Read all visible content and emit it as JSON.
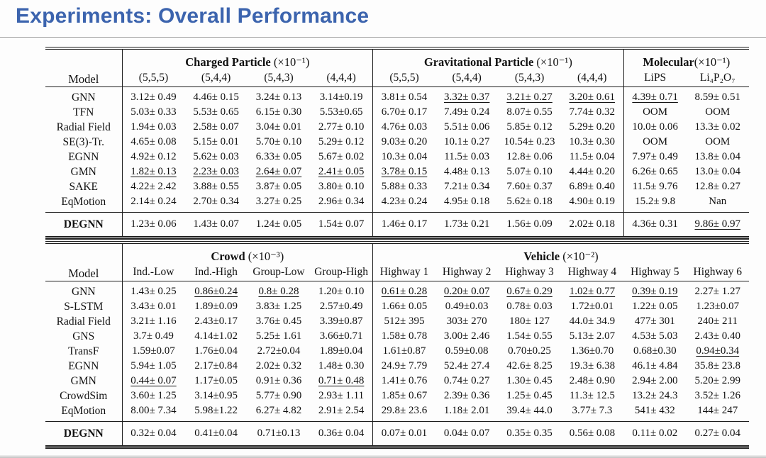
{
  "title": "Experiments: Overall Performance",
  "tables": [
    {
      "name": "particle-molecular-results",
      "model_header": "Model",
      "groups": [
        {
          "title": "Charged Particle (×10⁻¹)",
          "cols": [
            "(5,5,5)",
            "(5,4,4)",
            "(5,4,3)",
            "(4,4,4)"
          ]
        },
        {
          "title": "Gravitational Particle (×10⁻¹)",
          "cols": [
            "(5,5,5)",
            "(5,4,4)",
            "(5,4,3)",
            "(4,4,4)"
          ]
        },
        {
          "title": "Molecular(×10⁻¹)",
          "cols": [
            "LiPS",
            "Li₄P₂O₇"
          ]
        }
      ],
      "rows": [
        {
          "model": "GNN",
          "values": [
            "3.12± 0.49",
            "4.46± 0.15",
            "3.24± 0.13",
            "3.14±0.19",
            "3.81± 0.54",
            "3.32± 0.37",
            "3.21± 0.27",
            "3.20± 0.61",
            "4.39± 0.71",
            "8.59± 0.51"
          ],
          "underline_cols": [
            5,
            6,
            7,
            8
          ],
          "bold_cols": [
            9
          ]
        },
        {
          "model": "TFN",
          "values": [
            "5.03± 0.33",
            "5.53± 0.65",
            "6.15± 0.30",
            "5.53±0.65",
            "6.70± 0.17",
            "7.49± 0.24",
            "8.07± 0.55",
            "7.74± 0.32",
            "OOM",
            "OOM"
          ],
          "underline_cols": [],
          "bold_cols": []
        },
        {
          "model": "Radial Field",
          "values": [
            "1.94± 0.03",
            "2.58± 0.07",
            "3.04± 0.01",
            "2.77± 0.10",
            "4.76± 0.03",
            "5.51± 0.06",
            "5.85± 0.12",
            "5.29± 0.20",
            "10.0± 0.06",
            "13.3± 0.02"
          ],
          "underline_cols": [],
          "bold_cols": []
        },
        {
          "model": "SE(3)-Tr.",
          "values": [
            "4.65± 0.08",
            "5.15± 0.01",
            "5.70± 0.10",
            "5.29± 0.12",
            "9.03± 0.20",
            "10.1± 0.27",
            "10.54± 0.23",
            "10.3± 0.30",
            "OOM",
            "OOM"
          ],
          "underline_cols": [],
          "bold_cols": []
        },
        {
          "model": "EGNN",
          "values": [
            "4.92± 0.12",
            "5.62± 0.03",
            "6.33± 0.05",
            "5.67± 0.02",
            "10.3± 0.04",
            "11.5± 0.03",
            "12.8± 0.06",
            "11.5± 0.04",
            "7.97± 0.49",
            "13.8± 0.04"
          ],
          "underline_cols": [],
          "bold_cols": []
        },
        {
          "model": "GMN",
          "values": [
            "1.82± 0.13",
            "2.23± 0.03",
            "2.64± 0.07",
            "2.41± 0.05",
            "3.78± 0.15",
            "4.48± 0.13",
            "5.07± 0.10",
            "4.44± 0.20",
            "6.26± 0.65",
            "13.0± 0.04"
          ],
          "underline_cols": [
            0,
            1,
            2,
            3,
            4
          ],
          "bold_cols": []
        },
        {
          "model": "SAKE",
          "values": [
            "4.22± 2.42",
            "3.88± 0.55",
            "3.87± 0.05",
            "3.80± 0.10",
            "5.88± 0.33",
            "7.21± 0.34",
            "7.60± 0.37",
            "6.89± 0.40",
            "11.5± 9.76",
            "12.8± 0.27"
          ],
          "underline_cols": [],
          "bold_cols": []
        },
        {
          "model": "EqMotion",
          "values": [
            "2.14± 0.24",
            "2.70± 0.34",
            "3.27± 0.25",
            "2.96± 0.34",
            "4.23± 0.24",
            "4.95± 0.18",
            "5.62± 0.18",
            "4.90± 0.19",
            "15.2± 9.8",
            "Nan"
          ],
          "underline_cols": [],
          "bold_cols": []
        }
      ],
      "footer_row": {
        "model": "DEGNN",
        "values": [
          "1.23± 0.06",
          "1.43± 0.07",
          "1.24± 0.05",
          "1.54± 0.07",
          "1.46± 0.17",
          "1.73± 0.21",
          "1.56± 0.09",
          "2.02± 0.18",
          "4.36± 0.31",
          "9.86± 0.97"
        ],
        "underline_cols": [
          9
        ],
        "bold_cols": [
          0,
          1,
          2,
          3,
          4,
          5,
          6,
          7,
          8
        ]
      }
    },
    {
      "name": "crowd-vehicle-results",
      "model_header": "Model",
      "groups": [
        {
          "title": "Crowd (×10⁻³)",
          "cols": [
            "Ind.-Low",
            "Ind.-High",
            "Group-Low",
            "Group-High"
          ]
        },
        {
          "title": "Vehicle (×10⁻²)",
          "cols": [
            "Highway 1",
            "Highway 2",
            "Highway 3",
            "Highway 4",
            "Highway 5",
            "Highway 6"
          ]
        }
      ],
      "rows": [
        {
          "model": "GNN",
          "values": [
            "1.43± 0.25",
            "0.86±0.24",
            "0.8± 0.28",
            "1.20± 0.10",
            "0.61± 0.28",
            "0.20± 0.07",
            "0.67± 0.29",
            "1.02± 0.77",
            "0.39± 0.19",
            "2.27± 1.27"
          ],
          "underline_cols": [
            1,
            2,
            4,
            5,
            6,
            7,
            8
          ],
          "bold_cols": []
        },
        {
          "model": "S-LSTM",
          "values": [
            "3.43± 0.01",
            "1.89±0.09",
            "3.83± 1.25",
            "2.57±0.49",
            "1.66± 0.05",
            "0.49±0.03",
            "0.78± 0.03",
            "1.72±0.01",
            "1.22± 0.05",
            "1.23±0.07"
          ],
          "underline_cols": [],
          "bold_cols": []
        },
        {
          "model": "Radial Field",
          "values": [
            "3.21± 1.16",
            "2.43±0.17",
            "3.76± 0.45",
            "3.39±0.87",
            "512± 395",
            "303± 270",
            "180± 127",
            "44.0± 34.9",
            "477± 301",
            "240± 211"
          ],
          "underline_cols": [],
          "bold_cols": []
        },
        {
          "model": "GNS",
          "values": [
            "3.7± 0.49",
            "4.14±1.02",
            "5.25± 1.61",
            "3.66±0.71",
            "1.58± 0.78",
            "3.00± 2.46",
            "1.54± 0.55",
            "5.13± 2.07",
            "4.53± 5.03",
            "2.43± 0.40"
          ],
          "underline_cols": [],
          "bold_cols": []
        },
        {
          "model": "TransF",
          "values": [
            "1.59±0.07",
            "1.76±0.04",
            "2.72±0.04",
            "1.89±0.04",
            "1.61±0.87",
            "0.59±0.08",
            "0.70±0.25",
            "1.36±0.70",
            "0.68±0.30",
            "0.94±0.34"
          ],
          "underline_cols": [
            9
          ],
          "bold_cols": []
        },
        {
          "model": "EGNN",
          "values": [
            "5.94± 1.05",
            "2.17±0.84",
            "2.02± 0.32",
            "1.48± 0.30",
            "24.9± 7.79",
            "52.4± 27.4",
            "42.6± 8.25",
            "19.3± 6.38",
            "46.1± 4.84",
            "35.8± 23.8"
          ],
          "underline_cols": [],
          "bold_cols": []
        },
        {
          "model": "GMN",
          "values": [
            "0.44± 0.07",
            "1.17±0.05",
            "0.91± 0.36",
            "0.71± 0.48",
            "1.41± 0.76",
            "0.74± 0.27",
            "1.30± 0.45",
            "2.48± 0.90",
            "2.94± 2.00",
            "5.20± 2.99"
          ],
          "underline_cols": [
            0,
            3
          ],
          "bold_cols": []
        },
        {
          "model": "CrowdSim",
          "values": [
            "3.60± 1.25",
            "3.14±0.95",
            "5.77± 0.90",
            "2.93± 1.11",
            "1.85± 0.67",
            "2.39± 0.36",
            "1.25± 0.45",
            "11.3± 12.5",
            "13.2± 24.3",
            "3.52± 1.26"
          ],
          "underline_cols": [],
          "bold_cols": []
        },
        {
          "model": "EqMotion",
          "values": [
            "8.00± 7.34",
            "5.98±1.22",
            "6.27± 4.82",
            "2.91± 2.54",
            "29.8± 23.6",
            "1.18± 2.01",
            "39.4± 44.0",
            "3.77± 7.3",
            "541± 432",
            "144± 247"
          ],
          "underline_cols": [],
          "bold_cols": []
        }
      ],
      "footer_row": {
        "model": "DEGNN",
        "values": [
          "0.32± 0.04",
          "0.41±0.04",
          "0.71±0.13",
          "0.36± 0.04",
          "0.07± 0.01",
          "0.04± 0.07",
          "0.35± 0.35",
          "0.56± 0.08",
          "0.11± 0.02",
          "0.27± 0.04"
        ],
        "underline_cols": [],
        "bold_cols": [
          0,
          1,
          2,
          3,
          4,
          5,
          6,
          7,
          8,
          9
        ]
      }
    }
  ]
}
